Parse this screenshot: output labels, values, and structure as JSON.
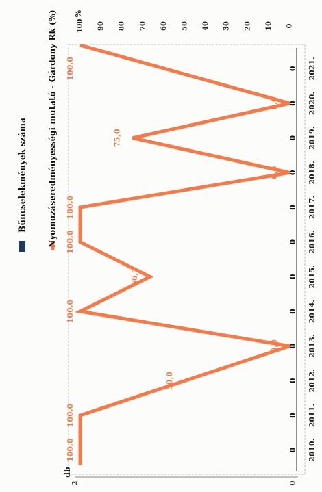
{
  "chart_data": {
    "type": "line",
    "categories": [
      "2010.",
      "2011.",
      "2012.",
      "2013.",
      "2014.",
      "2015.",
      "2016.",
      "2017.",
      "2018.",
      "2019.",
      "2020.",
      "2021."
    ],
    "series": [
      {
        "name": "Bűncselekmények száma",
        "axis": "db",
        "values": [
          0,
          0,
          0,
          0,
          0,
          0,
          0,
          0,
          0,
          0,
          0,
          0
        ],
        "data_labels": [
          "0",
          "0",
          "0",
          "0",
          "0",
          "0",
          "0",
          "0",
          "0",
          "0",
          "0",
          "0"
        ],
        "color": "#1f3a5f"
      },
      {
        "name": "Nyomozáseredményességi mutató - Gárdony Rk (%)",
        "axis": "%",
        "values": [
          100,
          100,
          50,
          0,
          100,
          66.7,
          100,
          100,
          0,
          75,
          0,
          100
        ],
        "data_labels": [
          "100,0",
          "100,0",
          "50,0",
          "0,0",
          "100,0",
          "66,7",
          "100,0",
          "100,0",
          "0,0",
          "75,0",
          "0,0",
          "100,0"
        ],
        "color": "#f47a4a"
      }
    ],
    "left_axis": {
      "label": "db",
      "ticks": [
        "2",
        "0"
      ],
      "range": [
        0,
        2
      ]
    },
    "right_axis": {
      "label": "%",
      "ticks": [
        "100",
        "90",
        "80",
        "70",
        "60",
        "50",
        "40",
        "30",
        "20",
        "10",
        "0"
      ],
      "range": [
        0,
        100
      ]
    },
    "legend": {
      "position": "top",
      "items": [
        "Bűncselekmények száma",
        "Nyomozáseredményességi mutató - Gárdony Rk (%)"
      ]
    },
    "rotation": "chart rotated 90° clockwise"
  }
}
